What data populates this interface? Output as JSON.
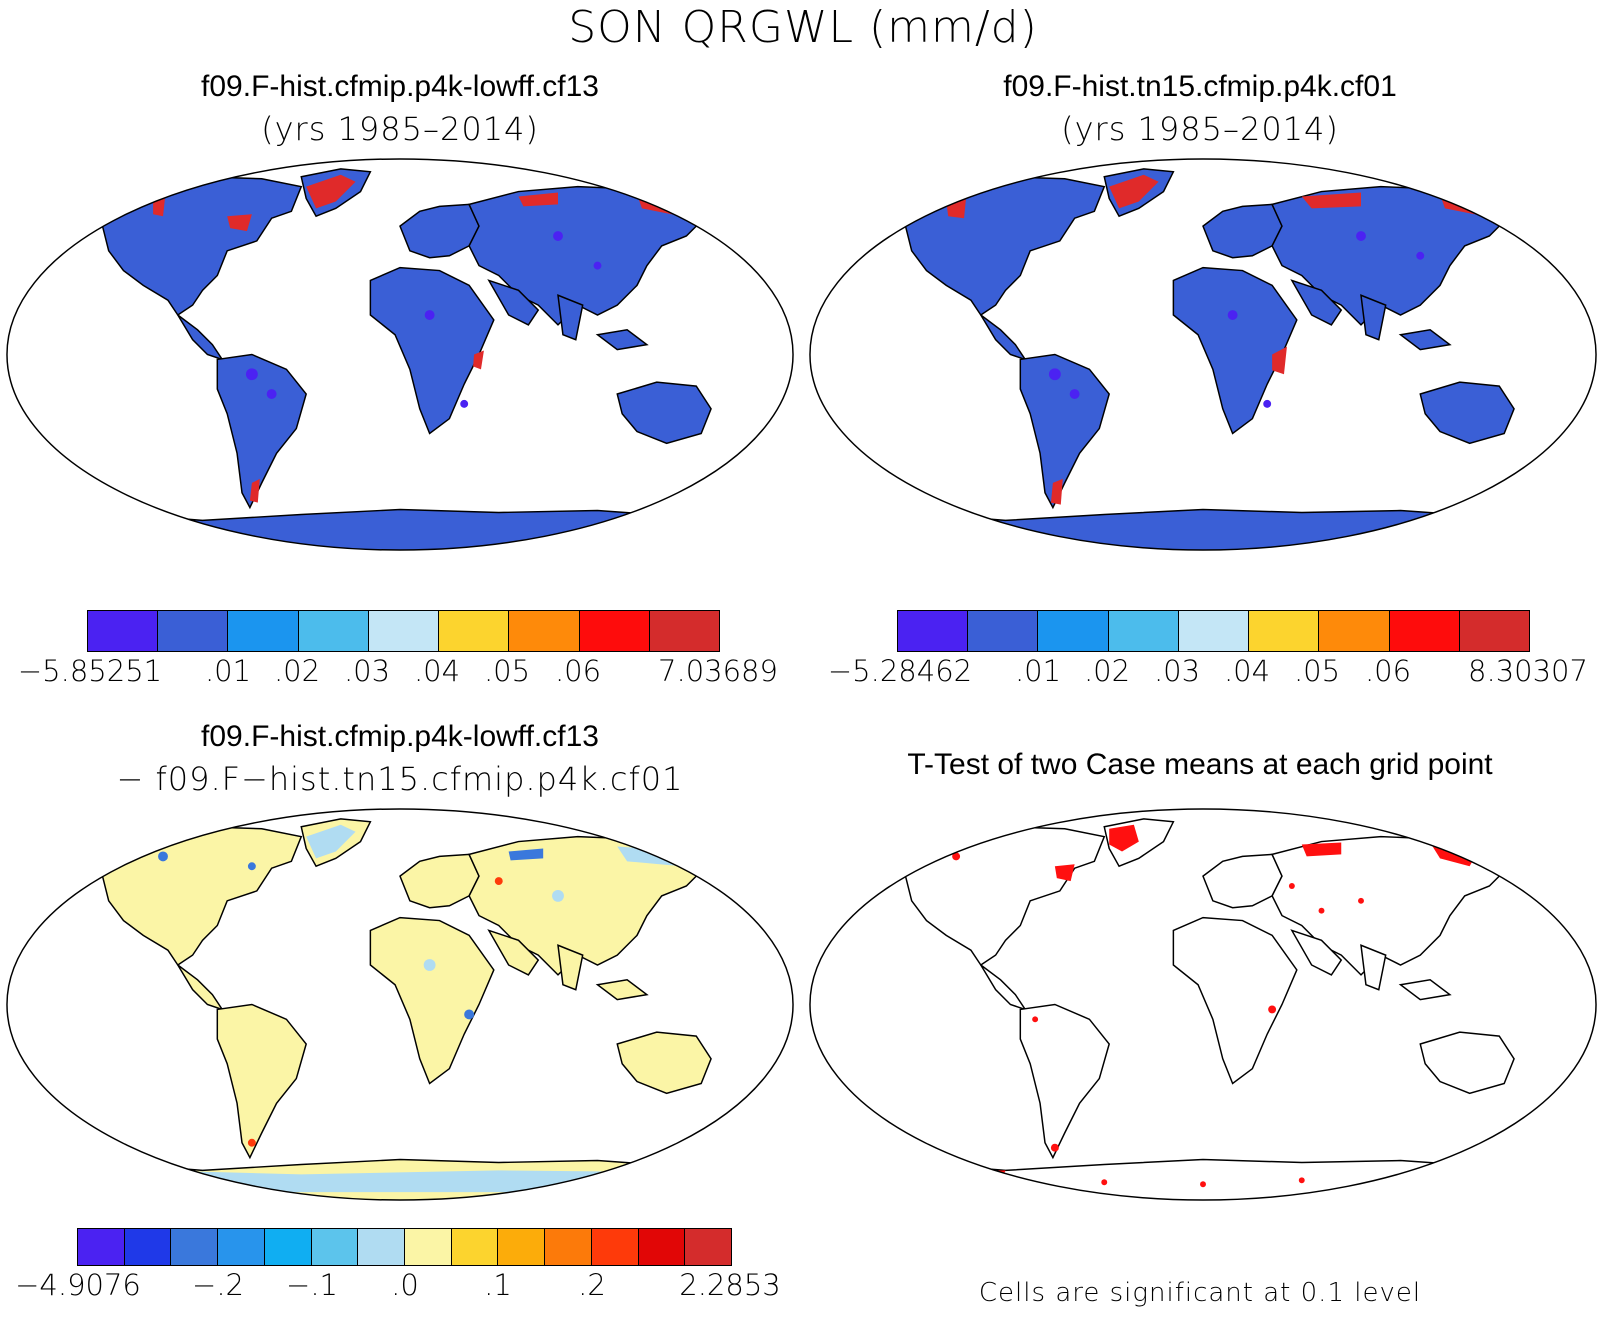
{
  "title": "SON QRGWL (mm/d)",
  "colors": {
    "land_base": "#3a5fd6",
    "ttest_sig": "#ff1010",
    "diff_base": "#fbf5a6"
  },
  "panels": {
    "top_left": {
      "title": "f09.F-hist.cfmip.p4k-lowff.cf13",
      "subtitle": "(yrs 1985–2014)",
      "colorbar": {
        "colors": [
          "#4b22f2",
          "#3a5fd6",
          "#1b95ef",
          "#4cbcec",
          "#c4e6f6",
          "#fcd42e",
          "#fe8a0a",
          "#fe0c0c",
          "#d42c2c"
        ],
        "min_label": "−5.85251",
        "max_label": "7.03689",
        "tick_labels": [
          ".01",
          ".02",
          ".03",
          ".04",
          ".05",
          ".06"
        ]
      }
    },
    "top_right": {
      "title": "f09.F-hist.tn15.cfmip.p4k.cf01",
      "subtitle": "(yrs 1985–2014)",
      "colorbar": {
        "colors": [
          "#4b22f2",
          "#3a5fd6",
          "#1b95ef",
          "#4cbcec",
          "#c4e6f6",
          "#fcd42e",
          "#fe8a0a",
          "#fe0c0c",
          "#d42c2c"
        ],
        "min_label": "−5.28462",
        "max_label": "8.30307",
        "tick_labels": [
          ".01",
          ".02",
          ".03",
          ".04",
          ".05",
          ".06"
        ]
      }
    },
    "bottom_left": {
      "title": "f09.F-hist.cfmip.p4k-lowff.cf13",
      "subtitle": "− f09.F−hist.tn15.cfmip.p4k.cf01",
      "colorbar": {
        "colors": [
          "#4b22f2",
          "#1f39e8",
          "#3a78dc",
          "#2894ec",
          "#10aef2",
          "#5cc4ec",
          "#b0dcf2",
          "#fbf5a6",
          "#fcd42e",
          "#fcac0a",
          "#fc7a0a",
          "#fe3a0a",
          "#e10606",
          "#d42c2c"
        ],
        "min_label": "−4.9076",
        "max_label": "2.2853",
        "tick_labels": [
          "−.2",
          "−.1",
          ".0",
          ".1",
          ".2"
        ]
      }
    },
    "bottom_right": {
      "title": "T-Test of two Case means at each grid point",
      "note": "Cells are significant at 0.1 level"
    }
  }
}
